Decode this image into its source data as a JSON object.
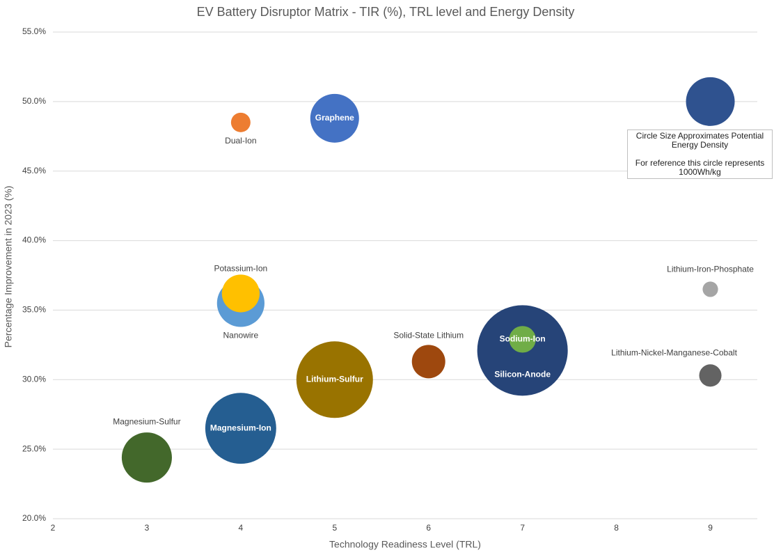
{
  "chart_data": {
    "type": "bubble",
    "title": "EV Battery Disruptor Matrix - TIR (%), TRL level and Energy Density",
    "x_label": "Technology Readiness Level (TRL)",
    "y_label": "Percentage Improvement in 2023 (%)",
    "xlim": [
      2,
      9.5
    ],
    "xticks": [
      2,
      3,
      4,
      5,
      6,
      7,
      8,
      9
    ],
    "ylim": [
      20,
      55
    ],
    "yticks": [
      {
        "value": 20,
        "label": "20.0%"
      },
      {
        "value": 25,
        "label": "25.0%"
      },
      {
        "value": 30,
        "label": "30.0%"
      },
      {
        "value": 35,
        "label": "35.0%"
      },
      {
        "value": 40,
        "label": "40.0%"
      },
      {
        "value": 45,
        "label": "45.0%"
      },
      {
        "value": 50,
        "label": "50.0%"
      },
      {
        "value": 55,
        "label": "55.0%"
      }
    ],
    "grid": true,
    "series": [
      {
        "name": "Dual-Ion",
        "color": "#ed7d31",
        "x": 4,
        "y": 48.5,
        "size": 160
      },
      {
        "name": "Graphene",
        "color": "#4472c4",
        "x": 5,
        "y": 48.8,
        "size": 1000
      },
      {
        "name": "Nanowire",
        "color": "#5b9bd5",
        "x": 4,
        "y": 35.5,
        "size": 950
      },
      {
        "name": "Potassium-Ion",
        "color": "#ffc000",
        "x": 4,
        "y": 36.2,
        "size": 600
      },
      {
        "name": "Solid-State Lithium",
        "color": "#9e480e",
        "x": 6,
        "y": 31.3,
        "size": 470
      },
      {
        "name": "Silicon-Anode",
        "color": "#264478",
        "x": 7,
        "y": 32.1,
        "size": 3450
      },
      {
        "name": "Sodium-Ion",
        "color": "#70ad47",
        "x": 7,
        "y": 32.9,
        "size": 300
      },
      {
        "name": "Lithium-Sulfur",
        "color": "#997300",
        "x": 5,
        "y": 30,
        "size": 2470
      },
      {
        "name": "Magnesium-Ion",
        "color": "#255e91",
        "x": 4,
        "y": 26.5,
        "size": 2120
      },
      {
        "name": "Magnesium-Sulfur",
        "color": "#43682b",
        "x": 3,
        "y": 24.4,
        "size": 1060
      },
      {
        "name": "Lithium-Iron-Phosphate",
        "color": "#a5a5a5",
        "x": 9,
        "y": 36.5,
        "size": 100
      },
      {
        "name": "Lithium-Nickel-Manganese-Cobalt",
        "color": "#636363",
        "x": 9,
        "y": 30.3,
        "size": 210
      }
    ],
    "reference_bubble": {
      "color": "#2f528f",
      "x": 9,
      "y": 50,
      "size": 1000
    },
    "annotation": [
      "Circle Size Approximates Potential Energy Density",
      "For reference this circle represents 1000Wh/kg"
    ]
  }
}
